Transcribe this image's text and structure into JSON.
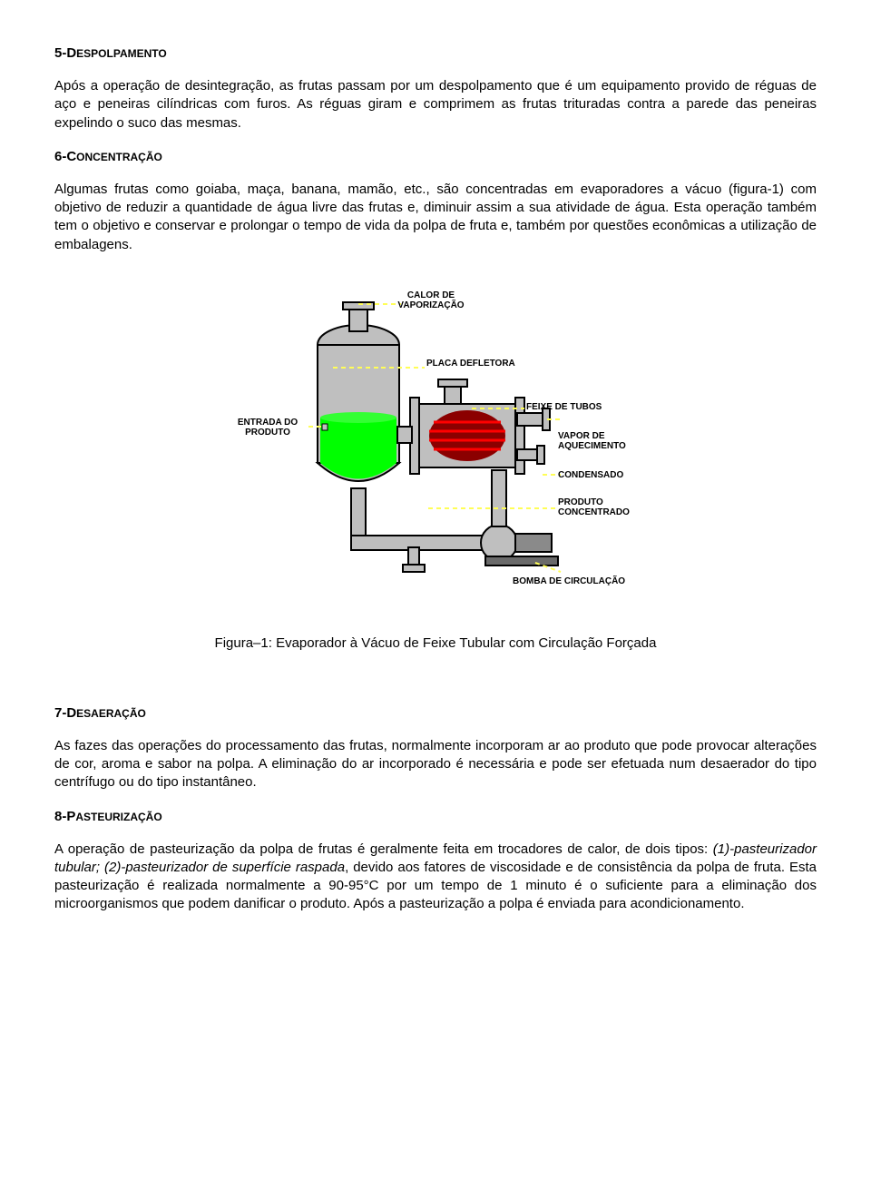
{
  "section5": {
    "heading_num": "5-D",
    "heading_rest": "ESPOLPAMENTO",
    "p1": "Após a operação de desintegração, as frutas passam por um despolpamento que é um equipamento provido de réguas de aço e peneiras cilíndricas com furos. As réguas giram e comprimem as frutas trituradas contra a parede das peneiras expelindo o suco das mesmas."
  },
  "section6": {
    "heading_num": "6-C",
    "heading_rest": "ONCENTRAÇÃO",
    "p1": "Algumas frutas como goiaba, maça, banana, mamão, etc., são concentradas em evaporadores a vácuo (figura-1) com objetivo de reduzir a quantidade de água livre das frutas e, diminuir assim a sua atividade de água. Esta operação também tem o objetivo e conservar e prolongar o tempo de vida da polpa de fruta e, também por questões econômicas a utilização de embalagens."
  },
  "figure1": {
    "caption": "Figura–1: Evaporador à Vácuo de Feixe Tubular com Circulação Forçada",
    "labels": {
      "calor": "CALOR DE\nVAPORIZAÇÃO",
      "placa": "PLACA DEFLETORA",
      "entrada": "ENTRADA DO\nPRODUTO",
      "feixe": "FEIXE DE TUBOS",
      "vapor": "VAPOR DE\nAQUECIMENTO",
      "condensado": "CONDENSADO",
      "produto_conc": "PRODUTO\nCONCENTRADO",
      "bomba": "BOMBA DE CIRCULAÇÃO"
    },
    "colors": {
      "equipment_fill": "#bfbfbf",
      "equipment_stroke": "#000000",
      "dashed": "#fffe57",
      "liquid": "#00ff00",
      "tubes": "#ff0000",
      "background": "#ffffff"
    }
  },
  "section7": {
    "heading_num": "7-D",
    "heading_rest": "ESAERAÇÃO",
    "p1": "As fazes das operações do processamento das frutas, normalmente incorporam ar ao produto que pode provocar alterações de cor, aroma e sabor na polpa. A eliminação do ar incorporado é necessária e pode ser efetuada num desaerador do tipo centrífugo ou do tipo instantâneo."
  },
  "section8": {
    "heading_num": "8-P",
    "heading_rest": "ASTEURIZAÇÃO",
    "p1_before_italic": "A operação de pasteurização da polpa de frutas é geralmente feita em trocadores de calor, de dois tipos: ",
    "p1_italic": "(1)-pasteurizador tubular; (2)-pasteurizador de superfície raspada",
    "p1_after_italic": ", devido aos fatores de viscosidade e de consistência da polpa de fruta. Esta pasteurização é realizada normalmente a 90-95°C por um tempo de 1 minuto é o suficiente para a eliminação dos microorganismos que podem danificar o produto. Após a pasteurização a polpa é enviada para acondicionamento."
  }
}
